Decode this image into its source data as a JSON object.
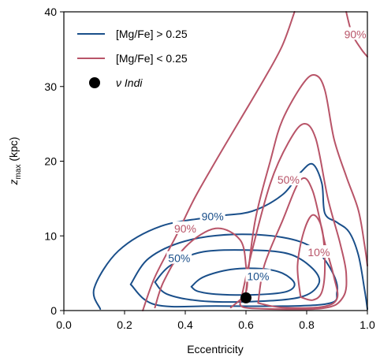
{
  "chart_data": {
    "type": "contour",
    "xlabel": "Eccentricity",
    "ylabel_main": "z",
    "ylabel_sub": "max",
    "ylabel_unit": " (kpc)",
    "xlim": [
      0.0,
      1.0
    ],
    "ylim": [
      0,
      40
    ],
    "x_ticks": [
      "0.0",
      "0.2",
      "0.4",
      "0.6",
      "0.8",
      "1.0"
    ],
    "y_ticks": [
      "0",
      "10",
      "20",
      "30",
      "40"
    ],
    "legend_position": "top-left",
    "series": [
      {
        "name": "[Mg/Fe] > 0.25",
        "color": "#1a4f8a",
        "contours": [
          {
            "label": "10%",
            "label_pos": [
              0.64,
              4.6
            ],
            "points": [
              [
                0.42,
                3.2
              ],
              [
                0.46,
                4.5
              ],
              [
                0.55,
                5.5
              ],
              [
                0.65,
                5.6
              ],
              [
                0.72,
                5.0
              ],
              [
                0.76,
                3.6
              ],
              [
                0.73,
                2.5
              ],
              [
                0.62,
                2.1
              ],
              [
                0.5,
                2.2
              ],
              [
                0.44,
                2.6
              ],
              [
                0.42,
                3.2
              ]
            ]
          },
          {
            "label": "",
            "points": [
              [
                0.3,
                3.8
              ],
              [
                0.35,
                6.0
              ],
              [
                0.45,
                7.8
              ],
              [
                0.6,
                8.1
              ],
              [
                0.74,
                7.6
              ],
              [
                0.82,
                5.6
              ],
              [
                0.84,
                3.6
              ],
              [
                0.78,
                1.8
              ],
              [
                0.62,
                1.2
              ],
              [
                0.45,
                1.3
              ],
              [
                0.34,
                2.2
              ],
              [
                0.3,
                3.8
              ]
            ]
          },
          {
            "label": "50%",
            "label_pos": [
              0.38,
              7.0
            ],
            "points": [
              [
                0.22,
                3.5
              ],
              [
                0.28,
                7.0
              ],
              [
                0.4,
                9.3
              ],
              [
                0.56,
                10.2
              ],
              [
                0.72,
                9.8
              ],
              [
                0.82,
                8.4
              ],
              [
                0.88,
                5.5
              ],
              [
                0.9,
                2.5
              ],
              [
                0.85,
                0.8
              ],
              [
                0.5,
                0.6
              ],
              [
                0.3,
                0.8
              ],
              [
                0.22,
                3.5
              ]
            ]
          },
          {
            "label": "90%",
            "label_pos": [
              0.49,
              12.6
            ],
            "points": [
              [
                0.12,
                0.2
              ],
              [
                0.1,
                3.0
              ],
              [
                0.18,
                8.0
              ],
              [
                0.32,
                11.3
              ],
              [
                0.5,
                12.6
              ],
              [
                0.62,
                13.3
              ],
              [
                0.72,
                15.5
              ],
              [
                0.78,
                18.5
              ],
              [
                0.82,
                19.6
              ],
              [
                0.85,
                17.0
              ],
              [
                0.86,
                13.0
              ],
              [
                0.9,
                11.8
              ],
              [
                0.94,
                10.5
              ],
              [
                0.97,
                7.5
              ],
              [
                0.99,
                3.0
              ],
              [
                1.0,
                0.2
              ]
            ]
          }
        ]
      },
      {
        "name": "[Mg/Fe] < 0.25",
        "color": "#b85468",
        "contours": [
          {
            "label": "10%",
            "label_pos": [
              0.84,
              7.8
            ],
            "points": [
              [
                0.78,
                1.8
              ],
              [
                0.77,
                6.0
              ],
              [
                0.79,
                10.5
              ],
              [
                0.82,
                12.8
              ],
              [
                0.85,
                11.0
              ],
              [
                0.86,
                6.0
              ],
              [
                0.85,
                2.5
              ],
              [
                0.82,
                1.4
              ],
              [
                0.78,
                1.8
              ]
            ]
          },
          {
            "label": "",
            "points": [
              [
                0.64,
                1.0
              ],
              [
                0.66,
                6.0
              ],
              [
                0.72,
                12.0
              ],
              [
                0.78,
                17.5
              ],
              [
                0.82,
                16.0
              ],
              [
                0.86,
                9.0
              ],
              [
                0.89,
                4.5
              ],
              [
                0.9,
                1.6
              ],
              [
                0.85,
                0.5
              ],
              [
                0.72,
                0.4
              ],
              [
                0.64,
                1.0
              ]
            ]
          },
          {
            "label": "50%",
            "label_pos": [
              0.74,
              17.5
            ],
            "points": [
              [
                0.58,
                0.8
              ],
              [
                0.62,
                8.0
              ],
              [
                0.68,
                17.0
              ],
              [
                0.74,
                22.5
              ],
              [
                0.79,
                25.0
              ],
              [
                0.83,
                23.0
              ],
              [
                0.87,
                15.0
              ],
              [
                0.91,
                9.0
              ],
              [
                0.93,
                5.0
              ],
              [
                0.92,
                1.8
              ],
              [
                0.85,
                0.3
              ],
              [
                0.62,
                0.3
              ],
              [
                0.58,
                0.8
              ]
            ]
          },
          {
            "label": "",
            "points": [
              [
                0.3,
                0.4
              ],
              [
                0.33,
                4.0
              ],
              [
                0.4,
                8.5
              ],
              [
                0.5,
                11.0
              ],
              [
                0.58,
                9.5
              ],
              [
                0.6,
                6.0
              ],
              [
                0.6,
                2.5
              ],
              [
                0.55,
                0.4
              ]
            ]
          },
          {
            "label": "90%",
            "label_pos": [
              0.4,
              11.0
            ],
            "points": [
              [
                0.26,
                0.0
              ],
              [
                0.3,
                4.5
              ],
              [
                0.37,
                10.0
              ],
              [
                0.43,
                15.0
              ],
              [
                0.5,
                20.0
              ],
              [
                0.58,
                25.5
              ],
              [
                0.66,
                31.0
              ],
              [
                0.72,
                35.5
              ],
              [
                0.76,
                40.0
              ]
            ]
          },
          {
            "label": "",
            "points": [
              [
                0.6,
                2.5
              ],
              [
                0.63,
                12.0
              ],
              [
                0.68,
                20.0
              ],
              [
                0.72,
                25.5
              ],
              [
                0.79,
                30.5
              ],
              [
                0.83,
                31.5
              ],
              [
                0.86,
                29.5
              ],
              [
                0.89,
                23.0
              ],
              [
                0.93,
                18.0
              ],
              [
                0.97,
                13.5
              ],
              [
                0.99,
                9.0
              ],
              [
                1.0,
                6.0
              ]
            ]
          },
          {
            "label": "90%",
            "label_pos": [
              0.96,
              37.0
            ],
            "points": [
              [
                0.93,
                40.0
              ],
              [
                0.95,
                37.0
              ],
              [
                0.98,
                35.0
              ],
              [
                1.0,
                34.0
              ]
            ]
          }
        ]
      }
    ],
    "points": [
      {
        "name": "ν Indi",
        "x": 0.6,
        "y": 1.7,
        "color": "#000000"
      }
    ]
  }
}
